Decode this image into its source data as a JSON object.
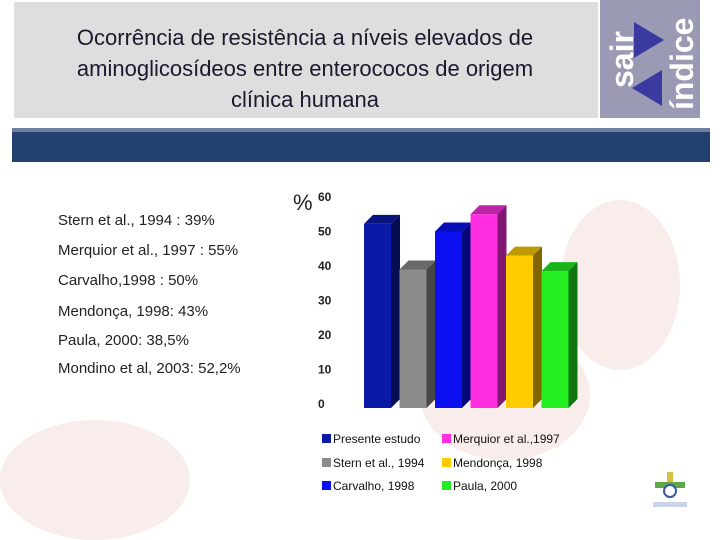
{
  "title": "Ocorrência de resistência a níveis elevados de aminoglicosídeos entre enterococos de origem clínica humana",
  "title_lines": [
    "Ocorrência de resistência a níveis elevados de",
    "aminoglicosídeos entre enterococos de origem",
    "clínica humana"
  ],
  "nav": {
    "exit_label": "sair",
    "index_label": "índice"
  },
  "references": [
    "Stern et al., 1994 : 39%",
    "Merquior et al., 1997 : 55%",
    "Carvalho,1998 : 50%",
    "Mendonça, 1998: 43%",
    "Paula, 2000: 38,5%",
    "Mondino et al, 2003: 52,2%"
  ],
  "chart_data": {
    "type": "bar",
    "ylabel": "%",
    "ylim": [
      0,
      60
    ],
    "yticks": [
      "0",
      "10",
      "20",
      "30",
      "40",
      "50",
      "60"
    ],
    "legend_position": "bottom",
    "series": [
      {
        "name": "Presente estudo",
        "value": 52.2,
        "color": "#0b1aa6"
      },
      {
        "name": "Stern et al., 1994",
        "value": 39,
        "color": "#8c8c8c"
      },
      {
        "name": "Carvalho, 1998",
        "value": 50,
        "color": "#0a10f0"
      },
      {
        "name": "Merquior et al.,1997",
        "value": 55,
        "color": "#ff2ee0"
      },
      {
        "name": "Mendonça, 1998",
        "value": 43,
        "color": "#ffcc00"
      },
      {
        "name": "Paula, 2000",
        "value": 38.5,
        "color": "#22ee22"
      }
    ]
  }
}
